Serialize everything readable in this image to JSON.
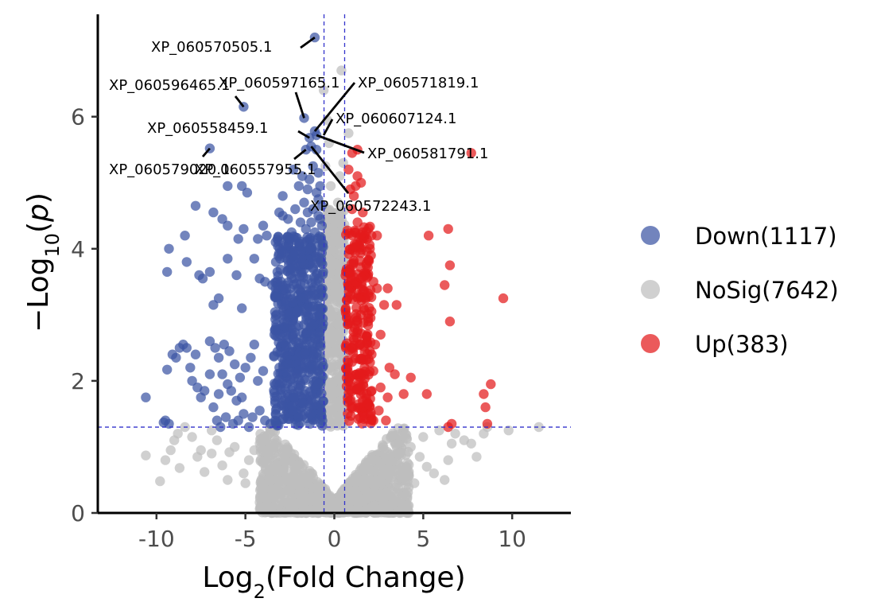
{
  "chart_data": {
    "type": "scatter",
    "title": "",
    "xlabel": {
      "base": "Log",
      "sub": "2",
      "rest": "(Fold Change)"
    },
    "ylabel": {
      "prefix": "−Log",
      "sub": "10",
      "open": "(",
      "var": "p",
      "close": ")"
    },
    "xlim": [
      -13.3,
      13.3
    ],
    "ylim": [
      0,
      7.55
    ],
    "xticks": [
      {
        "value": -10,
        "label": "-10"
      },
      {
        "value": -5,
        "label": "-5"
      },
      {
        "value": 0,
        "label": "0"
      },
      {
        "value": 5,
        "label": "5"
      },
      {
        "value": 10,
        "label": "10"
      }
    ],
    "yticks": [
      {
        "value": 0,
        "label": "0"
      },
      {
        "value": 2,
        "label": "2"
      },
      {
        "value": 4,
        "label": "4"
      },
      {
        "value": 6,
        "label": "6"
      }
    ],
    "grid": false,
    "legend_position": "right",
    "thresholds": {
      "log2fc": [
        -0.58,
        0.58
      ],
      "neg_log10_p": 1.3
    },
    "colors": {
      "Down": "#3B54A3",
      "NoSig": "#BEBEBE",
      "Up": "#E31A1C",
      "threshold_line": "#3333cc"
    },
    "series": [
      {
        "name": "Down(1117)",
        "key": "Down",
        "points": [
          [
            -10.6,
            1.75
          ],
          [
            -9.5,
            1.4
          ],
          [
            -9.6,
            1.37
          ],
          [
            -9.3,
            1.35
          ],
          [
            -9.4,
            2.17
          ],
          [
            -9.1,
            2.4
          ],
          [
            -8.9,
            2.35
          ],
          [
            -8.7,
            2.5
          ],
          [
            -8.5,
            2.55
          ],
          [
            -8.3,
            2.5
          ],
          [
            -8.1,
            2.2
          ],
          [
            -7.8,
            2.4
          ],
          [
            -8.0,
            2.0
          ],
          [
            -7.7,
            1.9
          ],
          [
            -7.5,
            1.75
          ],
          [
            -7.3,
            1.85
          ],
          [
            -7.0,
            2.1
          ],
          [
            -6.8,
            1.6
          ],
          [
            -6.5,
            1.8
          ],
          [
            -6.3,
            2.1
          ],
          [
            -6.0,
            1.95
          ],
          [
            -5.8,
            1.85
          ],
          [
            -5.5,
            1.7
          ],
          [
            -5.2,
            1.75
          ],
          [
            -7.0,
            2.6
          ],
          [
            -6.7,
            2.5
          ],
          [
            -6.5,
            2.35
          ],
          [
            -6.2,
            2.55
          ],
          [
            -5.9,
            2.45
          ],
          [
            -5.6,
            2.25
          ],
          [
            -5.3,
            2.05
          ],
          [
            -5.0,
            2.2
          ],
          [
            -4.7,
            2.35
          ],
          [
            -4.5,
            2.55
          ],
          [
            -4.3,
            2.0
          ],
          [
            -4.0,
            2.15
          ],
          [
            -6.6,
            1.4
          ],
          [
            -6.4,
            1.3
          ],
          [
            -6.1,
            1.45
          ],
          [
            -5.7,
            1.35
          ],
          [
            -5.4,
            1.4
          ],
          [
            -5.1,
            1.5
          ],
          [
            -4.8,
            1.3
          ],
          [
            -4.6,
            1.45
          ],
          [
            -4.2,
            1.55
          ],
          [
            -3.9,
            1.4
          ],
          [
            -3.6,
            1.35
          ],
          [
            -3.3,
            1.5
          ],
          [
            -9.3,
            4.0
          ],
          [
            -9.4,
            3.65
          ],
          [
            -8.4,
            4.2
          ],
          [
            -8.3,
            3.8
          ],
          [
            -7.6,
            3.6
          ],
          [
            -7.4,
            3.55
          ],
          [
            -7.0,
            3.65
          ],
          [
            -6.8,
            3.15
          ],
          [
            -6.5,
            3.25
          ],
          [
            -6.0,
            3.85
          ],
          [
            -5.5,
            3.6
          ],
          [
            -5.2,
            3.1
          ],
          [
            -7.8,
            4.65
          ],
          [
            -6.8,
            4.55
          ],
          [
            -6.3,
            4.45
          ],
          [
            -6.0,
            4.35
          ],
          [
            -5.4,
            4.15
          ],
          [
            -5.1,
            4.3
          ],
          [
            -4.9,
            4.85
          ],
          [
            -4.3,
            4.15
          ],
          [
            -4.0,
            4.35
          ],
          [
            -3.8,
            4.2
          ],
          [
            -3.3,
            4.1
          ],
          [
            -2.9,
            4.8
          ],
          [
            -6.0,
            4.95
          ],
          [
            -5.2,
            4.95
          ],
          [
            -4.5,
            3.85
          ],
          [
            -4.2,
            3.55
          ],
          [
            -3.9,
            3.5
          ],
          [
            -3.5,
            3.45
          ],
          [
            -3.2,
            3.65
          ],
          [
            -2.9,
            3.95
          ],
          [
            -2.7,
            3.2
          ],
          [
            -2.5,
            3.4
          ],
          [
            -2.3,
            3.7
          ],
          [
            -2.1,
            3.05
          ],
          [
            -3.1,
            4.55
          ],
          [
            -2.9,
            4.5
          ],
          [
            -2.6,
            4.45
          ],
          [
            -2.4,
            4.25
          ],
          [
            -2.2,
            4.6
          ],
          [
            -1.9,
            4.4
          ],
          [
            -1.7,
            4.7
          ],
          [
            -1.5,
            4.55
          ],
          [
            -1.3,
            4.4
          ],
          [
            -1.1,
            4.25
          ],
          [
            -0.9,
            4.5
          ],
          [
            -0.7,
            4.35
          ],
          [
            -7.0,
            5.52
          ],
          [
            -5.1,
            6.15
          ],
          [
            -1.7,
            5.98
          ],
          [
            -1.1,
            5.78
          ],
          [
            -1.0,
            5.72
          ],
          [
            -1.4,
            5.68
          ],
          [
            -1.3,
            5.55
          ],
          [
            -1.6,
            5.5
          ],
          [
            -1.0,
            5.5
          ],
          [
            -1.1,
            7.2
          ],
          [
            -2.3,
            5.2
          ],
          [
            -1.8,
            5.1
          ],
          [
            -1.2,
            5.25
          ],
          [
            -1.4,
            5.05
          ],
          [
            -0.9,
            5.15
          ],
          [
            -0.8,
            4.95
          ],
          [
            -1.0,
            4.85
          ],
          [
            -0.7,
            4.65
          ],
          [
            -1.5,
            4.9
          ],
          [
            -2.0,
            4.95
          ],
          [
            -0.9,
            4.75
          ],
          [
            -1.2,
            4.6
          ],
          [
            -0.8,
            4.45
          ],
          [
            -1.6,
            4.3
          ]
        ],
        "cloud": {
          "xmin": -3.4,
          "xmax": -0.62,
          "ymin": 1.32,
          "ymax": 4.2,
          "count": 620,
          "seed": 11
        }
      },
      {
        "name": "NoSig(7642)",
        "key": "NoSig",
        "points": [
          [
            -0.6,
            6.4
          ],
          [
            0.4,
            6.7
          ],
          [
            0.8,
            5.75
          ],
          [
            -0.4,
            5.95
          ],
          [
            -0.3,
            5.6
          ],
          [
            0.3,
            5.1
          ],
          [
            -0.2,
            4.95
          ],
          [
            0.2,
            4.7
          ],
          [
            -0.5,
            5.25
          ],
          [
            0.5,
            5.3
          ],
          [
            11.5,
            1.3
          ],
          [
            9.8,
            1.25
          ],
          [
            8.6,
            1.3
          ],
          [
            8.0,
            0.85
          ],
          [
            8.4,
            1.2
          ],
          [
            7.3,
            1.1
          ],
          [
            6.6,
            1.05
          ],
          [
            6.4,
            0.8
          ],
          [
            6.2,
            0.5
          ],
          [
            5.6,
            0.6
          ],
          [
            5.2,
            0.7
          ],
          [
            4.8,
            0.85
          ],
          [
            4.3,
            1.0
          ],
          [
            4.0,
            0.55
          ],
          [
            3.6,
            0.65
          ],
          [
            -10.6,
            0.87
          ],
          [
            -9.8,
            0.48
          ],
          [
            -9.5,
            0.8
          ],
          [
            -9.2,
            0.95
          ],
          [
            -8.8,
            1.2
          ],
          [
            -8.4,
            1.3
          ],
          [
            -8.0,
            1.15
          ],
          [
            -7.7,
            0.85
          ],
          [
            -7.3,
            0.62
          ],
          [
            -6.9,
            0.9
          ],
          [
            -6.6,
            1.1
          ],
          [
            -6.3,
            0.72
          ],
          [
            -5.9,
            0.92
          ],
          [
            -5.6,
            1.0
          ],
          [
            -5.1,
            0.6
          ],
          [
            -4.8,
            0.8
          ],
          [
            -4.5,
            0.95
          ],
          [
            -4.2,
            1.05
          ],
          [
            -3.8,
            0.75
          ],
          [
            -3.5,
            0.5
          ],
          [
            -3.1,
            0.65
          ],
          [
            -2.8,
            0.85
          ],
          [
            -2.4,
            0.55
          ],
          [
            -1.9,
            0.45
          ],
          [
            -6.0,
            0.5
          ],
          [
            -5.0,
            0.45
          ],
          [
            -6.9,
            1.25
          ],
          [
            -7.5,
            0.95
          ],
          [
            -8.7,
            0.68
          ],
          [
            -9.0,
            1.1
          ],
          [
            6.8,
            1.2
          ],
          [
            7.7,
            1.05
          ],
          [
            5.9,
            1.25
          ],
          [
            5.0,
            1.15
          ],
          [
            4.5,
            0.45
          ]
        ],
        "cloud": {
          "xmin": -4.2,
          "xmax": 4.2,
          "ymin": 0.0,
          "ymax": 1.29,
          "count": 1250,
          "seed": 23,
          "funnel": true
        },
        "cloud2": {
          "xmin": -0.6,
          "xmax": 0.6,
          "ymin": 1.3,
          "ymax": 4.6,
          "count": 420,
          "seed": 37
        }
      },
      {
        "name": "Up(383)",
        "key": "Up",
        "points": [
          [
            7.7,
            5.45
          ],
          [
            6.5,
            3.75
          ],
          [
            9.5,
            3.25
          ],
          [
            6.4,
            4.3
          ],
          [
            5.3,
            4.2
          ],
          [
            6.2,
            3.45
          ],
          [
            6.5,
            2.9
          ],
          [
            8.8,
            1.95
          ],
          [
            8.4,
            1.8
          ],
          [
            8.5,
            1.6
          ],
          [
            8.6,
            1.35
          ],
          [
            6.4,
            1.3
          ],
          [
            6.6,
            1.35
          ],
          [
            5.2,
            1.8
          ],
          [
            4.3,
            2.05
          ],
          [
            3.9,
            1.8
          ],
          [
            3.4,
            2.1
          ],
          [
            3.1,
            2.2
          ],
          [
            3.0,
            1.75
          ],
          [
            2.9,
            1.4
          ],
          [
            2.6,
            1.9
          ],
          [
            3.5,
            3.15
          ],
          [
            3.0,
            3.4
          ],
          [
            2.8,
            3.15
          ],
          [
            2.4,
            3.4
          ],
          [
            2.4,
            4.2
          ],
          [
            1.6,
            4.25
          ],
          [
            1.3,
            5.1
          ],
          [
            1.2,
            4.95
          ],
          [
            1.5,
            5.0
          ],
          [
            1.0,
            5.45
          ],
          [
            1.3,
            5.5
          ],
          [
            1.1,
            4.8
          ],
          [
            0.9,
            4.9
          ],
          [
            1.6,
            4.55
          ],
          [
            2.0,
            4.0
          ],
          [
            1.8,
            3.75
          ],
          [
            2.2,
            3.5
          ],
          [
            1.9,
            2.9
          ],
          [
            2.3,
            2.55
          ],
          [
            2.0,
            2.45
          ],
          [
            1.7,
            2.2
          ],
          [
            2.2,
            2.15
          ],
          [
            2.6,
            2.7
          ],
          [
            2.5,
            1.55
          ],
          [
            2.2,
            1.4
          ],
          [
            1.9,
            1.65
          ],
          [
            2.1,
            1.85
          ],
          [
            0.8,
            5.2
          ],
          [
            1.0,
            4.6
          ]
        ],
        "cloud": {
          "xmin": 0.62,
          "xmax": 2.1,
          "ymin": 1.32,
          "ymax": 4.4,
          "count": 260,
          "seed": 53
        }
      }
    ],
    "annotations": [
      {
        "label": "XP_060570505.1",
        "x": -1.1,
        "y": 7.2
      },
      {
        "label": "XP_060596465.1",
        "x": -5.1,
        "y": 6.15
      },
      {
        "label": "XP_060597165.1",
        "x": -1.7,
        "y": 5.98
      },
      {
        "label": "XP_060571819.1",
        "x": -1.1,
        "y": 5.78
      },
      {
        "label": "XP_060607124.1",
        "x": -0.6,
        "y": 5.72
      },
      {
        "label": "XP_060558459.1",
        "x": -1.4,
        "y": 5.68
      },
      {
        "label": "XP_060581791.1",
        "x": -1.0,
        "y": 5.72
      },
      {
        "label": "XP_060579020.1",
        "x": -7.0,
        "y": 5.52
      },
      {
        "label": "XP_060557955.1",
        "x": -1.6,
        "y": 5.5
      },
      {
        "label": "XP_060572243.1",
        "x": -1.3,
        "y": 5.55
      }
    ],
    "legend": [
      {
        "label": "Down(1117)",
        "key": "Down"
      },
      {
        "label": "NoSig(7642)",
        "key": "NoSig"
      },
      {
        "label": "Up(383)",
        "key": "Up"
      }
    ]
  }
}
